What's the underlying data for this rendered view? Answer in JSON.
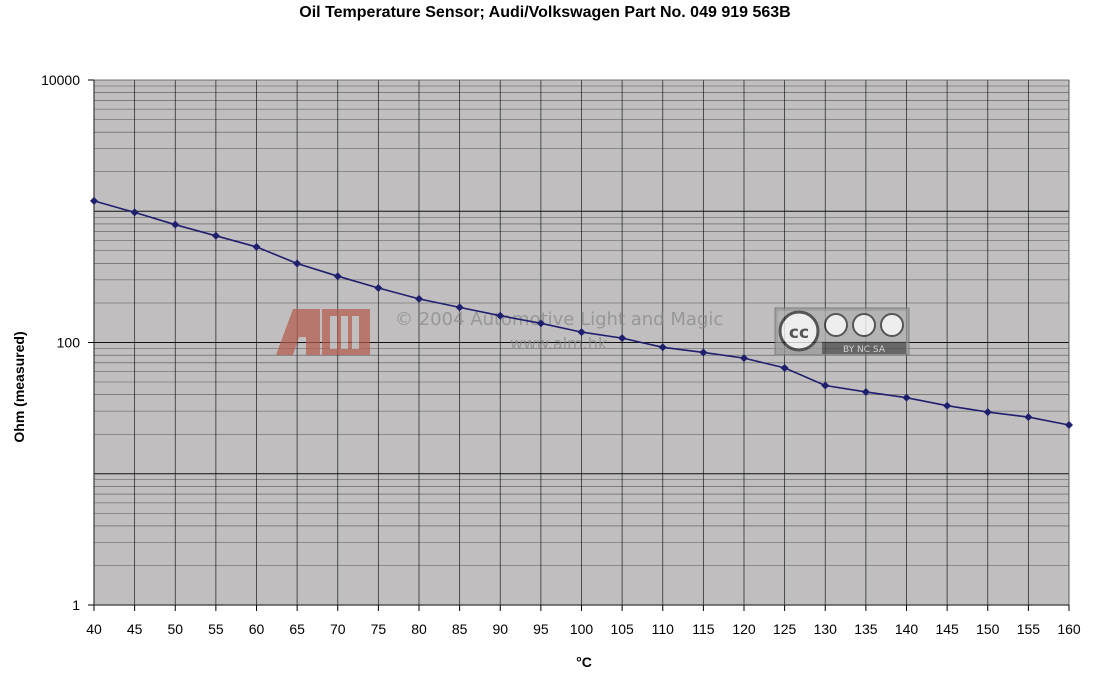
{
  "chart_data": {
    "type": "line",
    "title": "Oil Temperature Sensor; Audi/Volkswagen Part No. 049 919 563B",
    "xlabel": "°C",
    "ylabel": "Ohm (measured)",
    "y_scale": "log",
    "ylim": [
      1,
      10000
    ],
    "y_ticks": [
      "1",
      "100",
      "10000"
    ],
    "categories": [
      "40",
      "45",
      "50",
      "55",
      "60",
      "65",
      "70",
      "75",
      "80",
      "85",
      "90",
      "95",
      "100",
      "105",
      "110",
      "115",
      "120",
      "125",
      "130",
      "135",
      "140",
      "145",
      "150",
      "155",
      "160"
    ],
    "series": [
      {
        "values": [
          1200,
          980,
          790,
          650,
          535,
          400,
          320,
          260,
          215,
          185,
          160,
          140,
          120,
          108,
          92,
          84,
          76,
          64,
          47,
          42,
          38,
          33,
          29.5,
          27,
          23.5
        ],
        "color": "#1f1f6e"
      }
    ],
    "grid": true,
    "plot_background": "#c0bebf"
  },
  "watermark": {
    "logo_text": "ALM",
    "copyright": "© 2004 Automotive Light and Magic",
    "url": "www.alm.hk",
    "license_badge": "cc BY NC SA"
  }
}
